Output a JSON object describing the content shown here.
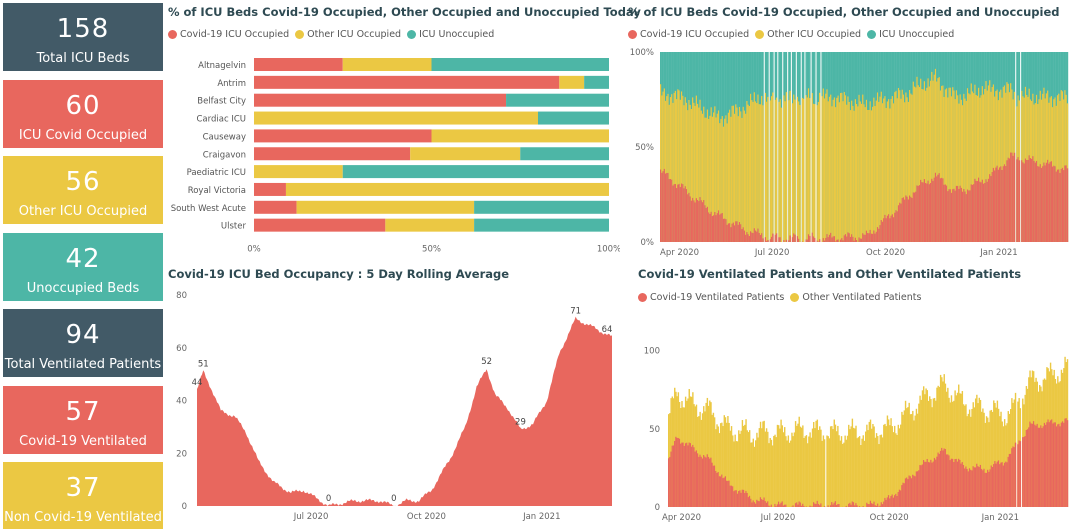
{
  "colors": {
    "covid": "#e8675e",
    "other": "#ebc843",
    "unocc": "#4db6a6",
    "dark": "#425a67"
  },
  "kpis": [
    {
      "value": "158",
      "label": "Total ICU Beds",
      "color": "#425a67"
    },
    {
      "value": "60",
      "label": "ICU Covid Occupied",
      "color": "#e8675e"
    },
    {
      "value": "56",
      "label": "Other ICU Occupied",
      "color": "#ebc843"
    },
    {
      "value": "42",
      "label": "Unoccupied Beds",
      "color": "#4db6a6"
    },
    {
      "value": "94",
      "label": "Total Ventilated Patients",
      "color": "#425a67"
    },
    {
      "value": "57",
      "label": "Covid-19 Ventilated",
      "color": "#e8675e"
    },
    {
      "value": "37",
      "label": "Non Covid-19 Ventilated",
      "color": "#ebc843"
    }
  ],
  "charts": {
    "today": {
      "title": "% of ICU Beds Covid-19 Occupied, Other Occupied and Unoccupied Today",
      "legend": [
        "Covid-19 ICU Occupied",
        "Other ICU Occupied",
        "ICU Unoccupied"
      ]
    },
    "history": {
      "title": "% of ICU Beds Covid-19 Occupied, Other Occupied and Unoccupied",
      "legend": [
        "Covid-19 ICU Occupied",
        "Other ICU Occupied",
        "ICU Unoccupied"
      ]
    },
    "rolling": {
      "title": "Covid-19 ICU Bed Occupancy : 5 Day Rolling Average"
    },
    "ventilated": {
      "title": "Covid-19 Ventilated Patients and Other Ventilated Patients",
      "legend": [
        "Covid-19 Ventilated Patients",
        "Other Ventilated Patients"
      ]
    }
  },
  "chart_data": [
    {
      "type": "bar",
      "orientation": "horizontal",
      "stacked": "percent",
      "title": "% of ICU Beds Covid-19 Occupied, Other Occupied and Unoccupied Today",
      "categories": [
        "Altnagelvin",
        "Antrim",
        "Belfast City",
        "Cardiac ICU",
        "Causeway",
        "Craigavon",
        "Paediatric ICU",
        "Royal Victoria",
        "South West Acute",
        "Ulster"
      ],
      "series": [
        {
          "name": "Covid-19 ICU Occupied",
          "values": [
            25,
            86,
            71,
            0,
            50,
            44,
            0,
            9,
            12,
            37
          ]
        },
        {
          "name": "Other ICU Occupied",
          "values": [
            25,
            7,
            0,
            80,
            50,
            31,
            25,
            91,
            50,
            25
          ]
        },
        {
          "name": "ICU Unoccupied",
          "values": [
            50,
            7,
            29,
            20,
            0,
            25,
            75,
            0,
            38,
            38
          ]
        }
      ],
      "x_ticks": [
        "0%",
        "50%",
        "100%"
      ],
      "xlim": [
        0,
        100
      ],
      "legend": "top-left"
    },
    {
      "type": "bar",
      "stacked": "percent",
      "title": "% of ICU Beds Covid-19 Occupied, Other Occupied and Unoccupied",
      "x_ticks": [
        "Apr 2020",
        "Jul 2020",
        "Oct 2020",
        "Jan 2021"
      ],
      "y_ticks": [
        "0%",
        "50%",
        "100%"
      ],
      "ylim": [
        0,
        100
      ],
      "x_range": [
        "2020-04-01",
        "2021-02-26"
      ],
      "series": [
        {
          "name": "Covid-19 ICU Occupied",
          "curve_points": [
            [
              "2020-04-01",
              37
            ],
            [
              "2020-04-10",
              33
            ],
            [
              "2020-04-25",
              25
            ],
            [
              "2020-05-15",
              15
            ],
            [
              "2020-06-10",
              6
            ],
            [
              "2020-07-01",
              2
            ],
            [
              "2020-08-15",
              2
            ],
            [
              "2020-09-15",
              3
            ],
            [
              "2020-10-01",
              12
            ],
            [
              "2020-10-25",
              28
            ],
            [
              "2020-11-10",
              35
            ],
            [
              "2020-11-25",
              27
            ],
            [
              "2020-12-05",
              28
            ],
            [
              "2020-12-25",
              35
            ],
            [
              "2021-01-10",
              45
            ],
            [
              "2021-01-25",
              43
            ],
            [
              "2021-02-26",
              38
            ]
          ]
        },
        {
          "name": "Other ICU Occupied",
          "curve_points": [
            [
              "2020-04-01",
              41
            ],
            [
              "2020-04-20",
              48
            ],
            [
              "2020-05-20",
              52
            ],
            [
              "2020-06-20",
              72
            ],
            [
              "2020-07-20",
              74
            ],
            [
              "2020-08-20",
              74
            ],
            [
              "2020-09-20",
              68
            ],
            [
              "2020-10-20",
              54
            ],
            [
              "2020-11-20",
              50
            ],
            [
              "2020-12-20",
              48
            ],
            [
              "2021-01-15",
              32
            ],
            [
              "2021-02-26",
              38
            ]
          ]
        },
        {
          "name": "ICU Unoccupied",
          "note": "remainder to 100%"
        }
      ],
      "legend": "top-left"
    },
    {
      "type": "area",
      "title": "Covid-19 ICU Bed Occupancy : 5 Day Rolling Average",
      "x_ticks": [
        "Jul 2020",
        "Oct 2020",
        "Jan 2021"
      ],
      "y_ticks": [
        0,
        20,
        40,
        60,
        80
      ],
      "ylim": [
        0,
        80
      ],
      "x_range": [
        "2020-04-01",
        "2021-02-26"
      ],
      "curve_points": [
        [
          "2020-04-01",
          44
        ],
        [
          "2020-04-06",
          51
        ],
        [
          "2020-04-12",
          45
        ],
        [
          "2020-04-20",
          36
        ],
        [
          "2020-05-01",
          34
        ],
        [
          "2020-05-10",
          28
        ],
        [
          "2020-05-20",
          17
        ],
        [
          "2020-06-01",
          9
        ],
        [
          "2020-06-15",
          5
        ],
        [
          "2020-06-25",
          6
        ],
        [
          "2020-07-05",
          3
        ],
        [
          "2020-07-15",
          0
        ],
        [
          "2020-07-25",
          1
        ],
        [
          "2020-08-05",
          2
        ],
        [
          "2020-08-25",
          2
        ],
        [
          "2020-09-05",
          0
        ],
        [
          "2020-09-15",
          2
        ],
        [
          "2020-09-25",
          2
        ],
        [
          "2020-10-05",
          6
        ],
        [
          "2020-10-20",
          18
        ],
        [
          "2020-11-01",
          30
        ],
        [
          "2020-11-10",
          45
        ],
        [
          "2020-11-18",
          52
        ],
        [
          "2020-11-25",
          42
        ],
        [
          "2020-12-05",
          37
        ],
        [
          "2020-12-15",
          29
        ],
        [
          "2020-12-25",
          31
        ],
        [
          "2021-01-05",
          40
        ],
        [
          "2021-01-15",
          58
        ],
        [
          "2021-01-28",
          71
        ],
        [
          "2021-02-10",
          68
        ],
        [
          "2021-02-26",
          64
        ]
      ],
      "data_labels": [
        {
          "date": "2020-04-01",
          "value": 44,
          "text": "44"
        },
        {
          "date": "2020-04-06",
          "value": 51,
          "text": "51"
        },
        {
          "date": "2020-07-15",
          "value": 0,
          "text": "0"
        },
        {
          "date": "2020-09-05",
          "value": 0,
          "text": "0"
        },
        {
          "date": "2020-11-18",
          "value": 52,
          "text": "52"
        },
        {
          "date": "2020-12-15",
          "value": 29,
          "text": "29"
        },
        {
          "date": "2021-01-28",
          "value": 71,
          "text": "71"
        },
        {
          "date": "2021-02-22",
          "value": 64,
          "text": "64"
        }
      ]
    },
    {
      "type": "bar",
      "stacked": true,
      "title": "Covid-19 Ventilated Patients and Other Ventilated Patients",
      "x_ticks": [
        "Apr 2020",
        "Jul 2020",
        "Oct 2020",
        "Jan 2021"
      ],
      "y_ticks": [
        0,
        50,
        100
      ],
      "ylim": [
        0,
        110
      ],
      "x_range": [
        "2020-04-01",
        "2021-02-26"
      ],
      "series": [
        {
          "name": "Covid-19 Ventilated Patients",
          "curve_points": [
            [
              "2020-04-01",
              30
            ],
            [
              "2020-04-08",
              45
            ],
            [
              "2020-04-20",
              38
            ],
            [
              "2020-05-05",
              30
            ],
            [
              "2020-05-20",
              15
            ],
            [
              "2020-06-10",
              5
            ],
            [
              "2020-07-01",
              1
            ],
            [
              "2020-08-15",
              1
            ],
            [
              "2020-09-15",
              1
            ],
            [
              "2020-10-01",
              5
            ],
            [
              "2020-10-25",
              25
            ],
            [
              "2020-11-15",
              36
            ],
            [
              "2020-12-01",
              26
            ],
            [
              "2020-12-20",
              24
            ],
            [
              "2021-01-05",
              30
            ],
            [
              "2021-01-25",
              52
            ],
            [
              "2021-02-26",
              55
            ]
          ]
        },
        {
          "name": "Other Ventilated Patients",
          "curve_points": [
            [
              "2020-04-01",
              28
            ],
            [
              "2020-04-20",
              28
            ],
            [
              "2020-05-20",
              35
            ],
            [
              "2020-06-20",
              45
            ],
            [
              "2020-07-20",
              48
            ],
            [
              "2020-08-20",
              46
            ],
            [
              "2020-09-20",
              47
            ],
            [
              "2020-10-20",
              42
            ],
            [
              "2020-11-20",
              42
            ],
            [
              "2020-12-20",
              38
            ],
            [
              "2021-01-10",
              26
            ],
            [
              "2021-02-10",
              30
            ],
            [
              "2021-02-26",
              35
            ]
          ]
        }
      ],
      "legend": "top-left"
    }
  ]
}
